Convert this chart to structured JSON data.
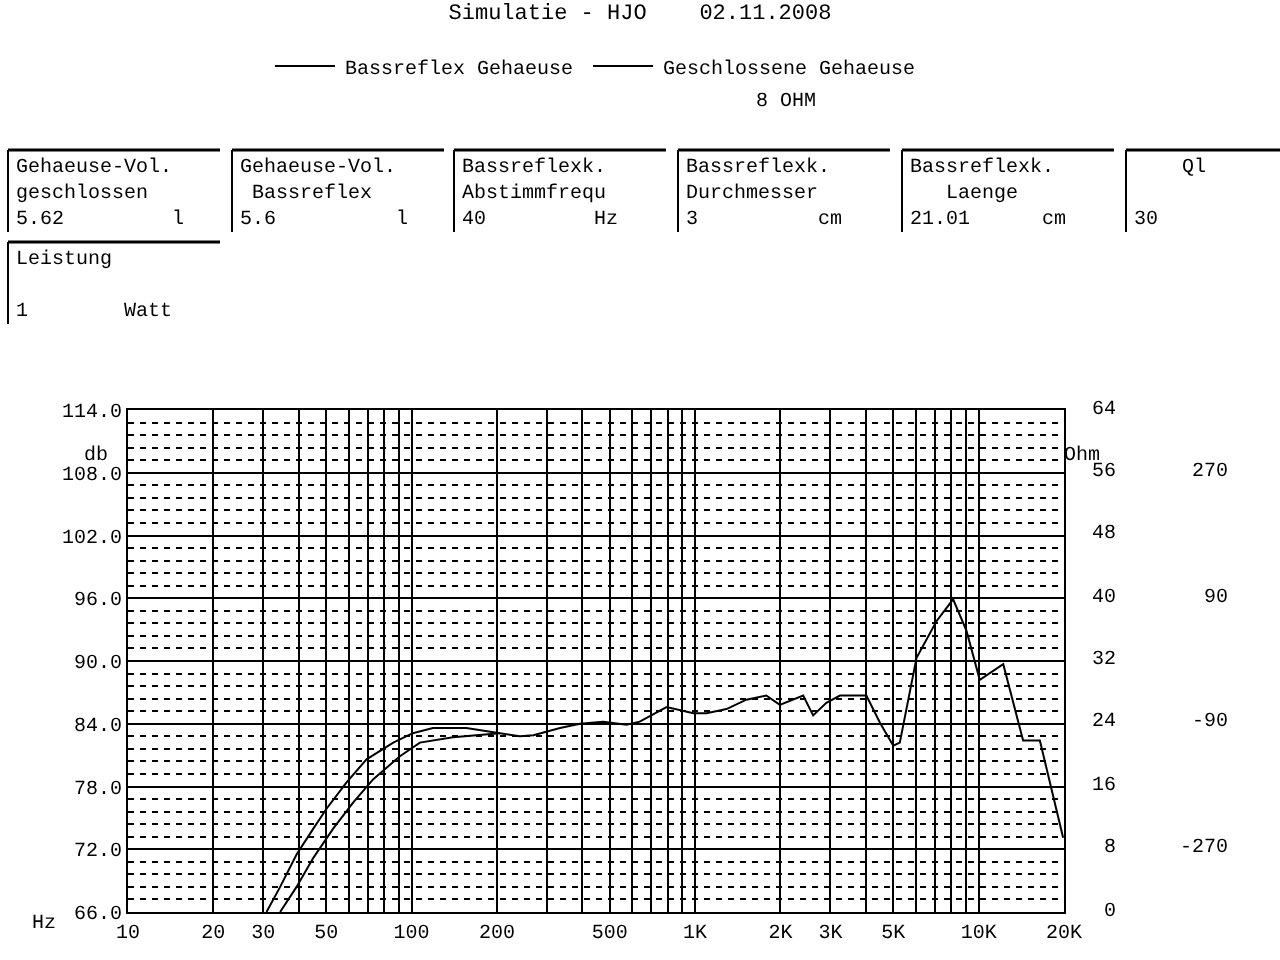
{
  "chart_data": {
    "type": "line",
    "title": "Simulatie - HJO    02.11.2008",
    "xlabel": "Hz",
    "ylabel": "db",
    "y2label": "Ohm",
    "annotations": [
      "8 OHM",
      "Gehaeuse-Vol.\ngeschlossen\n5.62         l",
      "Gehaeuse-Vol.\n Bassreflex\n5.6          l",
      "Bassreflexk.\nAbstimmfrequ\n40         Hz",
      "Bassreflexk.\nDurchmesser\n3          cm",
      "Bassreflexk.\n   Laenge\n21.01      cm",
      "    Ql\n\n30",
      "Leistung\n\n1        Watt"
    ],
    "log": "x",
    "grid": true,
    "legend": "top",
    "line_style": "solid",
    "marker": "none",
    "xlim": [
      10,
      20000
    ],
    "xticks": [
      10,
      20,
      30,
      {
        "value": 40,
        "label": null
      },
      50,
      {
        "value": 60,
        "label": null
      },
      {
        "value": 70,
        "label": null
      },
      {
        "value": 80,
        "label": null
      },
      {
        "value": 90,
        "label": null
      },
      100,
      200,
      {
        "value": 300,
        "label": null
      },
      {
        "value": 400,
        "label": null
      },
      500,
      {
        "value": 600,
        "label": null
      },
      {
        "value": 700,
        "label": null
      },
      {
        "value": 800,
        "label": null
      },
      {
        "value": 900,
        "label": null
      },
      {
        "value": 1000,
        "label": "1K"
      },
      {
        "value": 2000,
        "label": "2K"
      },
      {
        "value": 3000,
        "label": "3K"
      },
      {
        "value": 4000,
        "label": null
      },
      {
        "value": 5000,
        "label": "5K"
      },
      {
        "value": 6000,
        "label": null
      },
      {
        "value": 7000,
        "label": null
      },
      {
        "value": 8000,
        "label": null
      },
      {
        "value": 9000,
        "label": null
      },
      {
        "value": 10000,
        "label": "10K"
      },
      {
        "value": 20000,
        "label": "20K"
      }
    ],
    "ylim": [
      66,
      114
    ],
    "yticks": [
      {
        "value": 66,
        "label": "66.0"
      },
      {
        "value": 72,
        "label": "72.0"
      },
      {
        "value": 78,
        "label": "78.0"
      },
      {
        "value": 84,
        "label": "84.0"
      },
      {
        "value": 90,
        "label": "90.0"
      },
      {
        "value": 96,
        "label": "96.0"
      },
      {
        "value": 102,
        "label": "102.0"
      },
      {
        "value": 108,
        "label": "108.0"
      },
      {
        "value": 114,
        "label": "114.0"
      }
    ],
    "y2lim": [
      0,
      64
    ],
    "y2ticks": [
      0,
      8,
      16,
      24,
      32,
      40,
      48,
      56,
      64
    ],
    "y3lim": [
      -360,
      360
    ],
    "y3ticks": [
      -270,
      -90,
      90,
      270
    ],
    "series": [
      {
        "name": "Bassreflex Gehaeuse",
        "color": "#000000",
        "x": [
          30.8,
          34.4,
          39.3,
          45.1,
          50.2,
          59.0,
          69.4,
          86.2,
          101,
          119,
          156,
          205,
          241,
          269,
          334,
          393,
          474,
          573,
          638,
          793,
          986,
          1097,
          1290,
          1517,
          1783,
          1990,
          2405,
          2608,
          2904,
          3243,
          4018,
          4487,
          5000,
          5272,
          6039,
          7100,
          8128,
          9057,
          10090,
          12210,
          14350,
          16440,
          19860
        ],
        "values": [
          66,
          68.4,
          71.5,
          74.0,
          75.9,
          78.4,
          80.6,
          82.2,
          83.1,
          83.6,
          83.6,
          83.1,
          82.8,
          82.9,
          83.6,
          84.0,
          84.2,
          83.9,
          84.2,
          85.6,
          85.0,
          85.0,
          85.4,
          86.3,
          86.7,
          85.8,
          86.7,
          84.8,
          86.0,
          86.7,
          86.7,
          84.1,
          81.9,
          82.2,
          90.3,
          93.8,
          95.9,
          92.9,
          88.2,
          89.7,
          82.4,
          82.4,
          73.1
        ]
      },
      {
        "name": "Geschlossene Gehaeuse",
        "color": "#000000",
        "x": [
          34.4,
          39.3,
          45.1,
          53.0,
          62.4,
          73.3,
          91.0,
          107,
          140,
          205
        ],
        "values": [
          66,
          68.4,
          71.2,
          74.0,
          76.5,
          78.7,
          80.9,
          82.2,
          82.7,
          83.1
        ]
      }
    ]
  }
}
